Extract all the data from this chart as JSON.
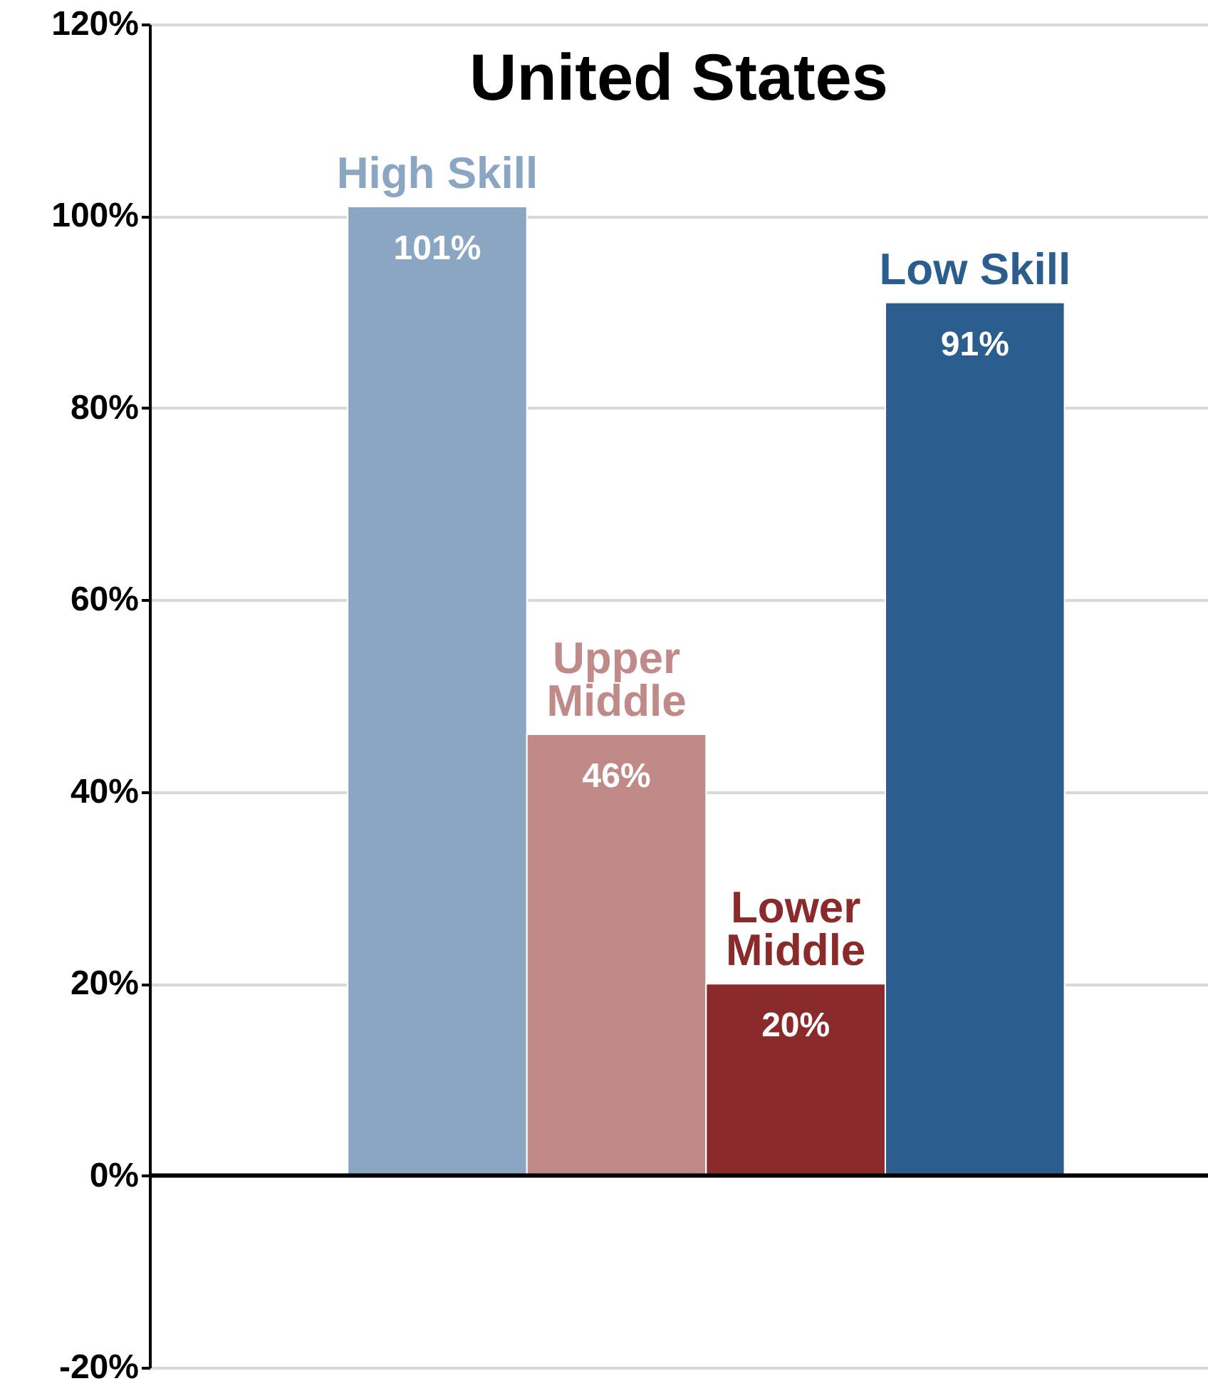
{
  "chart_data": {
    "type": "bar",
    "title": "United States",
    "categories": [
      "High Skill",
      "Upper Middle",
      "Lower Middle",
      "Low Skill"
    ],
    "values": [
      101,
      46,
      20,
      91
    ],
    "colors": [
      "#8aa6c3",
      "#c08a89",
      "#8b2a2b",
      "#2b5d8f"
    ],
    "value_labels": [
      "101%",
      "46%",
      "20%",
      "91%"
    ],
    "ylim": [
      -20,
      120
    ],
    "yticks": [
      {
        "value": -20,
        "label": "-20%"
      },
      {
        "value": 0,
        "label": "0%"
      },
      {
        "value": 20,
        "label": "20%"
      },
      {
        "value": 40,
        "label": "40%"
      },
      {
        "value": 60,
        "label": "60%"
      },
      {
        "value": 80,
        "label": "80%"
      },
      {
        "value": 100,
        "label": "100%"
      },
      {
        "value": 120,
        "label": "120%"
      }
    ],
    "ref_lines": [
      {
        "axis": "y",
        "value": 0,
        "color": "#000000"
      }
    ],
    "grid": "y"
  }
}
